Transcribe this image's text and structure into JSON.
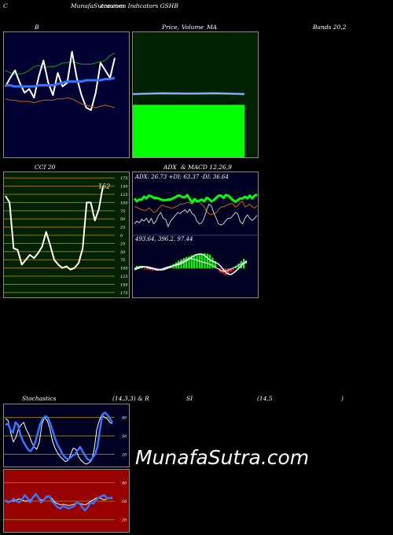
{
  "header": {
    "corner": "C",
    "site_title": "MunafaSutra.com",
    "overlap": "common Indicators GSHB"
  },
  "titles": {
    "b": "B",
    "price": "Price,",
    "volume": "Volume",
    "ma": "MA",
    "bands": "Bands 20,2",
    "cci": "CCI 20",
    "adx": "ADX",
    "amp": "& MACD 12,26,9",
    "stoch": "Stochastics",
    "stoch_params": "(14,3,3) & R",
    "si": "SI",
    "rsi_params": "(14,5",
    "close_paren": ")"
  },
  "watermark": "MunafaSutra.com",
  "colors": {
    "bg": "#000000",
    "bb_panel": "#000033",
    "price_panel": "#002200",
    "cci_panel": "#002200",
    "adx_panel": "#000022",
    "stoch_panel": "#000022",
    "rsi_panel": "#990000",
    "bright_green": "#00ff00",
    "blue": "#3377ff",
    "orange": "#cc6600",
    "grid_gold": "#997700"
  },
  "chart_data": [
    {
      "type": "line",
      "title": "B",
      "series": [
        {
          "color": "#00aa00",
          "values": [
            70,
            68,
            67,
            67,
            68,
            70,
            73,
            74,
            72,
            73,
            73,
            74,
            76,
            76,
            77,
            76,
            75,
            75,
            75,
            76,
            77,
            78,
            82,
            84
          ]
        },
        {
          "color": "#ffffff",
          "values": [
            57,
            64,
            70,
            60,
            52,
            55,
            48,
            65,
            78,
            60,
            50,
            68,
            57,
            60,
            85,
            64,
            50,
            40,
            38,
            52,
            76,
            70,
            64,
            80
          ]
        },
        {
          "color": "#3377ff",
          "values": [
            58,
            58,
            57,
            57,
            57,
            57,
            57,
            58,
            58,
            58,
            58,
            59,
            60,
            61,
            61,
            61,
            61,
            62,
            62,
            62,
            62,
            63,
            63,
            64
          ]
        },
        {
          "color": "#cc6600",
          "values": [
            47,
            46,
            46,
            45,
            45,
            45,
            44,
            45,
            46,
            46,
            46,
            47,
            47,
            48,
            47,
            45,
            43,
            42,
            41,
            40,
            41,
            42,
            41,
            40
          ]
        }
      ],
      "ylim": [
        0,
        100
      ]
    },
    {
      "type": "bar",
      "title": "Price, Volume, MA",
      "price_levels": [
        58.5,
        59,
        58.8,
        59,
        58.5
      ],
      "volume_fill": 0.42
    },
    {
      "type": "line",
      "title": "CCI 20",
      "yticks": [
        175,
        150,
        125,
        100,
        75,
        50,
        25,
        0,
        -25,
        -50,
        -75,
        -100,
        -125,
        -150,
        -175
      ],
      "ytick_labels": [
        "175",
        "150",
        "125",
        "100",
        "75",
        "50",
        "25",
        "0",
        "25",
        "50",
        "75",
        "100",
        "125",
        "150",
        "175"
      ],
      "last_label": "152",
      "values": [
        120,
        100,
        -40,
        -45,
        -90,
        -75,
        -60,
        -70,
        -55,
        -35,
        10,
        -30,
        -75,
        -90,
        -100,
        -95,
        -105,
        -100,
        -85,
        -40,
        100,
        100,
        45,
        80,
        150
      ],
      "ylim": [
        -190,
        190
      ]
    },
    {
      "type": "line",
      "title": "ADX & MACD 12,26,9",
      "adx_label": "ADX: 26.73 +DI: 63.37 -DI: 36.64",
      "macd_label": "493.64, 396.2, 97.44",
      "adx": {
        "green": [
          65,
          60,
          63,
          63,
          68,
          65,
          70,
          69,
          66,
          66,
          65,
          63,
          62,
          62,
          63,
          63,
          65,
          67,
          70,
          70,
          67,
          67,
          71,
          64,
          58,
          64,
          60,
          61,
          63,
          60,
          66,
          64,
          60,
          62,
          66,
          70,
          70,
          66,
          71,
          70,
          66,
          62,
          59,
          62,
          65,
          65,
          68,
          65,
          70,
          65,
          70,
          72
        ],
        "orange": [
          50,
          50,
          47,
          45,
          44,
          44,
          48,
          45,
          40,
          42,
          47,
          52,
          53,
          50,
          50,
          48,
          48,
          50,
          52,
          55,
          55,
          56,
          58,
          57,
          55,
          60,
          62,
          58,
          55,
          50,
          42,
          38,
          36,
          38,
          40,
          45,
          50,
          50,
          52,
          54,
          56,
          55,
          50,
          52,
          58,
          60,
          50,
          52,
          55,
          50,
          48,
          52
        ],
        "white": [
          20,
          25,
          22,
          28,
          25,
          30,
          22,
          30,
          20,
          25,
          35,
          40,
          30,
          28,
          15,
          25,
          30,
          35,
          40,
          38,
          42,
          45,
          40,
          46,
          38,
          35,
          25,
          20,
          22,
          30,
          44,
          55,
          52,
          40,
          30,
          20,
          18,
          20,
          26,
          30,
          30,
          35,
          40,
          38,
          24,
          20,
          30,
          36,
          30,
          26,
          30,
          35
        ]
      },
      "macd": {
        "histogram": [
          10,
          10,
          10,
          -5,
          -5,
          -8,
          -10,
          -10,
          -10,
          -10,
          -5,
          -5,
          8,
          12,
          18,
          25,
          32,
          38,
          43,
          48,
          50,
          55,
          57,
          60,
          60,
          62,
          64,
          62,
          58,
          45,
          30,
          -5,
          -18,
          -22,
          -28,
          -25,
          -15,
          -8,
          5,
          20,
          30,
          40
        ],
        "macd_line": [
          55,
          58,
          60,
          60,
          58,
          56,
          55,
          52,
          52,
          55,
          58,
          60,
          62,
          64,
          66,
          70,
          74,
          80,
          85,
          90,
          92,
          92,
          88,
          80,
          75,
          72,
          68,
          60,
          50,
          42,
          40,
          45,
          52,
          60,
          68,
          75
        ],
        "signal_line": [
          52,
          55,
          58,
          60,
          60,
          58,
          56,
          54,
          52,
          52,
          55,
          58,
          62,
          66,
          70,
          74,
          78,
          80,
          80,
          78,
          75,
          72,
          70,
          68,
          64,
          60,
          55,
          50,
          48,
          50,
          54,
          58,
          62,
          66,
          70,
          70
        ]
      }
    },
    {
      "type": "line",
      "title": "Stochastics (14,3,3)",
      "yticks": [
        80,
        50,
        20
      ],
      "blue": [
        68,
        70,
        60,
        55,
        72,
        68,
        52,
        42,
        35,
        28,
        25,
        30,
        40,
        55,
        70,
        78,
        82,
        80,
        70,
        58,
        45,
        35,
        28,
        20,
        15,
        12,
        14,
        18,
        20,
        26,
        32,
        25,
        18,
        12,
        10,
        14,
        20,
        32,
        60,
        85,
        88,
        84,
        78,
        72
      ],
      "white": [
        78,
        75,
        55,
        40,
        48,
        62,
        68,
        72,
        60,
        52,
        40,
        32,
        28,
        40,
        70,
        80,
        75,
        62,
        42,
        30,
        22,
        16,
        12,
        8,
        10,
        20,
        30,
        28,
        16,
        10,
        6,
        4,
        6,
        10,
        28,
        60,
        75,
        85,
        80,
        78,
        72,
        70
      ],
      "ylim": [
        0,
        100
      ]
    },
    {
      "type": "line",
      "title": "RSI (14,5)",
      "yticks": [
        80,
        50,
        20
      ],
      "blue": [
        52,
        48,
        50,
        54,
        50,
        48,
        52,
        60,
        55,
        48,
        56,
        62,
        56,
        48,
        52,
        58,
        58,
        50,
        45,
        40,
        38,
        42,
        40,
        38,
        40,
        42,
        48,
        46,
        40,
        35,
        40,
        48,
        46,
        52,
        56,
        58,
        60,
        55,
        55,
        56
      ],
      "white": [
        50,
        48,
        50,
        50,
        52,
        54,
        52,
        50,
        50,
        52,
        55,
        60,
        56,
        52,
        52,
        56,
        58,
        54,
        48,
        46,
        44,
        45,
        44,
        43,
        44,
        45,
        48,
        47,
        45,
        44,
        46,
        50,
        52,
        55,
        56,
        54,
        52,
        54,
        55,
        54
      ],
      "ylim": [
        0,
        100
      ]
    }
  ]
}
